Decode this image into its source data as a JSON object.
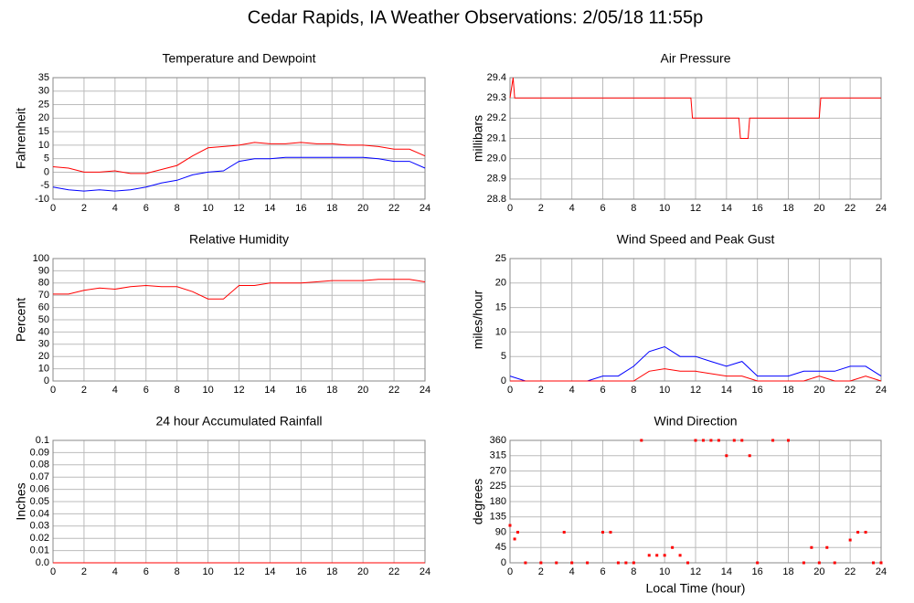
{
  "title": "Cedar Rapids, IA Weather Observations: 2/05/18 11:55p",
  "chart_data": [
    {
      "type": "line",
      "title": "Temperature and Dewpoint",
      "ylabel": "Fahrenheit",
      "x": [
        0,
        1,
        2,
        3,
        4,
        5,
        6,
        7,
        8,
        9,
        10,
        11,
        12,
        13,
        14,
        15,
        16,
        17,
        18,
        19,
        20,
        21,
        22,
        23,
        24
      ],
      "series": [
        {
          "color": "#ff0000",
          "values": [
            2,
            1.5,
            0,
            0,
            0.5,
            -0.5,
            -0.5,
            1,
            2.5,
            6,
            9,
            9.5,
            10,
            11,
            10.5,
            10.5,
            11,
            10.5,
            10.5,
            10,
            10,
            9.5,
            8.5,
            8.5,
            6
          ]
        },
        {
          "color": "#0000ff",
          "values": [
            -5.5,
            -6.5,
            -7,
            -6.5,
            -7,
            -6.5,
            -5.5,
            -4,
            -3,
            -1,
            0,
            0.5,
            4,
            5,
            5,
            5.5,
            5.5,
            5.5,
            5.5,
            5.5,
            5.5,
            5,
            4,
            4,
            1.5
          ]
        }
      ],
      "xlim": [
        0,
        24
      ],
      "xticks": [
        0,
        2,
        4,
        6,
        8,
        10,
        12,
        14,
        16,
        18,
        20,
        22,
        24
      ],
      "ylim": [
        -10,
        35
      ],
      "yticks": [
        -10,
        -5,
        0,
        5,
        10,
        15,
        20,
        25,
        30,
        35
      ],
      "grid": true
    },
    {
      "type": "line",
      "title": "Air Pressure",
      "ylabel": "millibars",
      "x": [
        0,
        0.2,
        0.3,
        0.5,
        11.7,
        11.8,
        14.8,
        14.9,
        15.4,
        15.5,
        20,
        20.1,
        24
      ],
      "series": [
        {
          "color": "#ff0000",
          "values": [
            29.3,
            29.4,
            29.3,
            29.3,
            29.3,
            29.2,
            29.2,
            29.1,
            29.1,
            29.2,
            29.2,
            29.3,
            29.3
          ]
        }
      ],
      "xlim": [
        0,
        24
      ],
      "xticks": [
        0,
        2,
        4,
        6,
        8,
        10,
        12,
        14,
        16,
        18,
        20,
        22,
        24
      ],
      "ylim": [
        28.8,
        29.4
      ],
      "yticks": [
        28.8,
        28.9,
        {
          "value": 29,
          "label": "29.0"
        },
        29.1,
        29.2,
        29.3,
        29.4
      ],
      "grid": true
    },
    {
      "type": "line",
      "title": "Relative Humidity",
      "ylabel": "Percent",
      "x": [
        0,
        1,
        2,
        3,
        4,
        5,
        6,
        7,
        8,
        9,
        10,
        11,
        12,
        13,
        14,
        15,
        16,
        17,
        18,
        19,
        20,
        21,
        22,
        23,
        24
      ],
      "series": [
        {
          "color": "#ff0000",
          "values": [
            71,
            71,
            74,
            76,
            75,
            77,
            78,
            77,
            77,
            73,
            67,
            67,
            78,
            78,
            80,
            80,
            80,
            81,
            82,
            82,
            82,
            83,
            83,
            83,
            81
          ]
        }
      ],
      "xlim": [
        0,
        24
      ],
      "xticks": [
        0,
        2,
        4,
        6,
        8,
        10,
        12,
        14,
        16,
        18,
        20,
        22,
        24
      ],
      "ylim": [
        0,
        100
      ],
      "yticks": [
        0,
        10,
        20,
        30,
        40,
        50,
        60,
        70,
        80,
        90,
        100
      ],
      "grid": true
    },
    {
      "type": "line",
      "title": "Wind Speed and Peak Gust",
      "ylabel": "miles/hour",
      "x": [
        0,
        1,
        2,
        3,
        4,
        5,
        6,
        7,
        8,
        9,
        10,
        11,
        12,
        13,
        14,
        15,
        16,
        17,
        18,
        19,
        20,
        21,
        22,
        23,
        24
      ],
      "series": [
        {
          "color": "#0000ff",
          "values": [
            1,
            0,
            0,
            0,
            0,
            0,
            1,
            1,
            3,
            6,
            7,
            5,
            5,
            4,
            3,
            4,
            1,
            1,
            1,
            2,
            2,
            2,
            3,
            3,
            1
          ]
        },
        {
          "color": "#ff0000",
          "values": [
            0,
            0,
            0,
            0,
            0,
            0,
            0,
            0,
            0,
            2,
            2.5,
            2,
            2,
            1.5,
            1,
            1,
            0,
            0,
            0,
            0,
            1,
            0,
            0,
            1,
            0
          ]
        }
      ],
      "xlim": [
        0,
        24
      ],
      "xticks": [
        0,
        2,
        4,
        6,
        8,
        10,
        12,
        14,
        16,
        18,
        20,
        22,
        24
      ],
      "ylim": [
        0,
        25
      ],
      "yticks": [
        0,
        5,
        10,
        15,
        20,
        25
      ],
      "grid": true
    },
    {
      "type": "line",
      "title": "24 hour Accumulated Rainfall",
      "ylabel": "Inches",
      "x": [
        0,
        24
      ],
      "series": [
        {
          "color": "#ff0000",
          "values": [
            0,
            0
          ]
        }
      ],
      "xlim": [
        0,
        24
      ],
      "xticks": [
        0,
        2,
        4,
        6,
        8,
        10,
        12,
        14,
        16,
        18,
        20,
        22,
        24
      ],
      "ylim": [
        0,
        0.1
      ],
      "yticks": [
        {
          "value": 0,
          "label": "0.0"
        },
        0.01,
        0.02,
        0.03,
        0.04,
        0.05,
        0.06,
        0.07,
        0.08,
        0.09,
        0.1
      ],
      "grid": true
    },
    {
      "type": "scatter",
      "title": "Wind Direction",
      "ylabel": "degrees",
      "xlabel": "Local Time (hour)",
      "x": [
        0,
        0.3,
        0.5,
        1,
        2,
        3,
        3.5,
        4,
        5,
        6,
        6.5,
        7,
        7.5,
        8,
        8.5,
        9,
        9.5,
        10,
        10.5,
        11,
        11.5,
        12,
        12.5,
        13,
        13.5,
        14,
        14.5,
        15,
        15.5,
        16,
        17,
        18,
        19,
        19.5,
        20,
        20.5,
        21,
        22,
        22.5,
        23,
        23.5,
        24
      ],
      "series": [
        {
          "color": "#ff0000",
          "values": [
            110,
            70,
            90,
            0,
            0,
            0,
            90,
            0,
            0,
            90,
            90,
            0,
            0,
            0,
            360,
            22,
            22,
            22,
            45,
            22,
            0,
            360,
            360,
            360,
            360,
            315,
            360,
            360,
            315,
            0,
            360,
            360,
            0,
            45,
            0,
            45,
            0,
            67,
            90,
            90,
            0,
            0
          ]
        }
      ],
      "xlim": [
        0,
        24
      ],
      "xticks": [
        0,
        2,
        4,
        6,
        8,
        10,
        12,
        14,
        16,
        18,
        20,
        22,
        24
      ],
      "ylim": [
        0,
        360
      ],
      "yticks": [
        0,
        45,
        90,
        135,
        180,
        225,
        270,
        315,
        360
      ],
      "grid": true
    }
  ]
}
